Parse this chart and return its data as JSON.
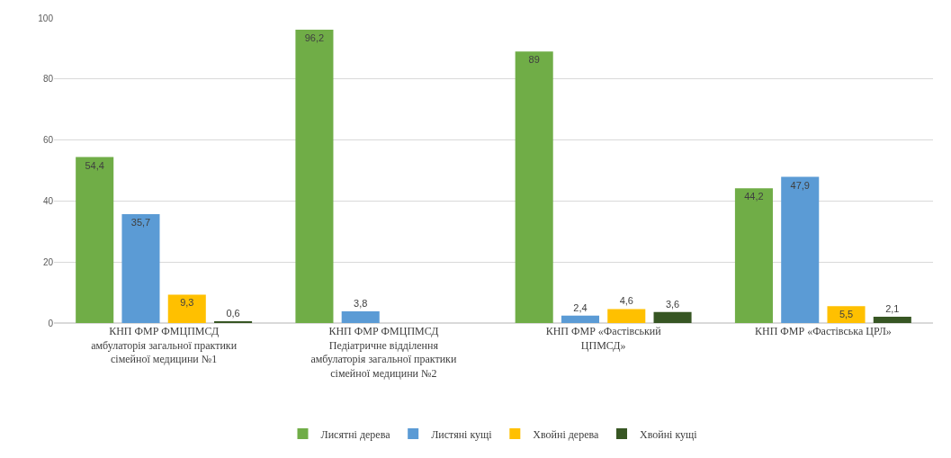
{
  "chart_data": {
    "type": "bar",
    "categories": [
      "КНП ФМР ФМЦПМСД\nамбулаторія загальної практики\nсімейної медицини №1",
      "КНП ФМР ФМЦПМСД\nПедіатричне відділення\nамбулаторія загальної практики\nсімейної медицини №2",
      "КНП ФМР «Фастівський\nЦПМСД»",
      "КНП ФМР «Фастівська ЦРЛ»"
    ],
    "series": [
      {
        "name": "Лисятні дерева",
        "color": "#70ad47",
        "values": [
          54.4,
          96.2,
          89,
          44.2
        ],
        "value_labels": [
          "54,4",
          "96,2",
          "89",
          "44,2"
        ]
      },
      {
        "name": "Листяні кущі",
        "color": "#5b9bd5",
        "values": [
          35.7,
          3.8,
          2.4,
          47.9
        ],
        "value_labels": [
          "35,7",
          "3,8",
          "2,4",
          "47,9"
        ]
      },
      {
        "name": "Хвойні дерева",
        "color": "#ffc000",
        "values": [
          9.3,
          null,
          4.6,
          5.5
        ],
        "value_labels": [
          "9,3",
          null,
          "4,6",
          "5,5"
        ]
      },
      {
        "name": "Хвойні кущі",
        "color": "#375623",
        "values": [
          0.6,
          null,
          3.6,
          2.1
        ],
        "value_labels": [
          "0,6",
          null,
          "3,6",
          "2,1"
        ]
      }
    ],
    "ylim": [
      0,
      100
    ],
    "yticks": [
      0,
      20,
      40,
      60,
      80,
      100
    ],
    "grid": "y",
    "legend": "bottom"
  }
}
